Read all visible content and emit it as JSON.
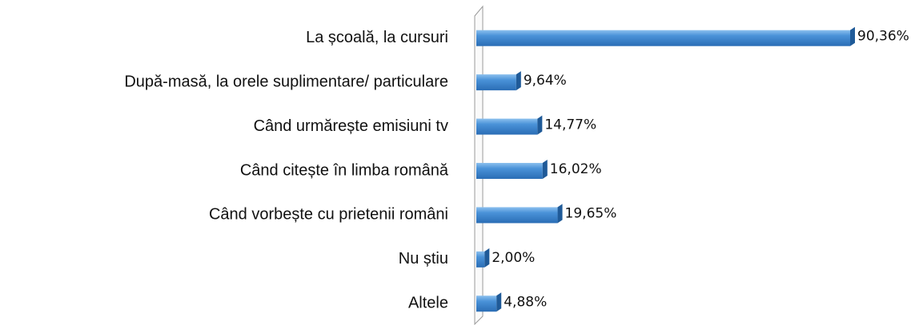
{
  "chart_data": {
    "type": "bar",
    "orientation": "horizontal",
    "categories": [
      "La școală, la cursuri",
      "După-masă, la orele suplimentare/ particulare",
      "Când urmărește emisiuni tv",
      "Când citește în limba română",
      "Când vorbește cu prietenii români",
      "Nu știu",
      "Altele"
    ],
    "values": [
      90.36,
      9.64,
      14.77,
      16.02,
      19.65,
      2.0,
      4.88
    ],
    "value_labels": [
      "90,36%",
      "9,64%",
      "14,77%",
      "16,02%",
      "19,65%",
      "2,00%",
      "4,88%"
    ],
    "color": "#3f87d0"
  }
}
